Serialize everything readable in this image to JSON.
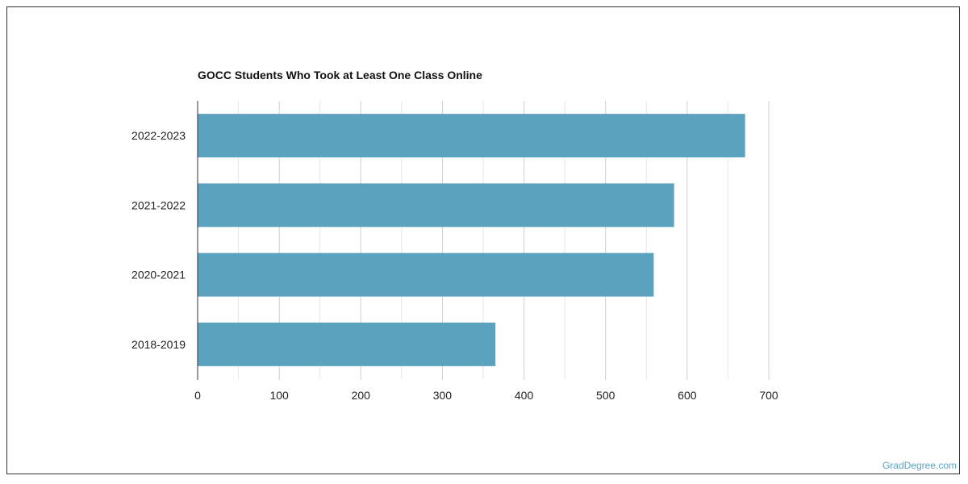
{
  "chart_data": {
    "type": "bar",
    "orientation": "horizontal",
    "title": "GOCC Students Who Took at Least One Class Online",
    "categories": [
      "2022-2023",
      "2021-2022",
      "2020-2021",
      "2018-2019"
    ],
    "values": [
      671,
      584,
      559,
      365
    ],
    "xlim": [
      0,
      700
    ],
    "x_ticks": [
      0,
      100,
      200,
      300,
      400,
      500,
      600,
      700
    ],
    "grid": true,
    "bar_color": "#5ba2bf"
  },
  "watermark": {
    "text": "GradDegree.com",
    "color": "#5ba2bf"
  }
}
